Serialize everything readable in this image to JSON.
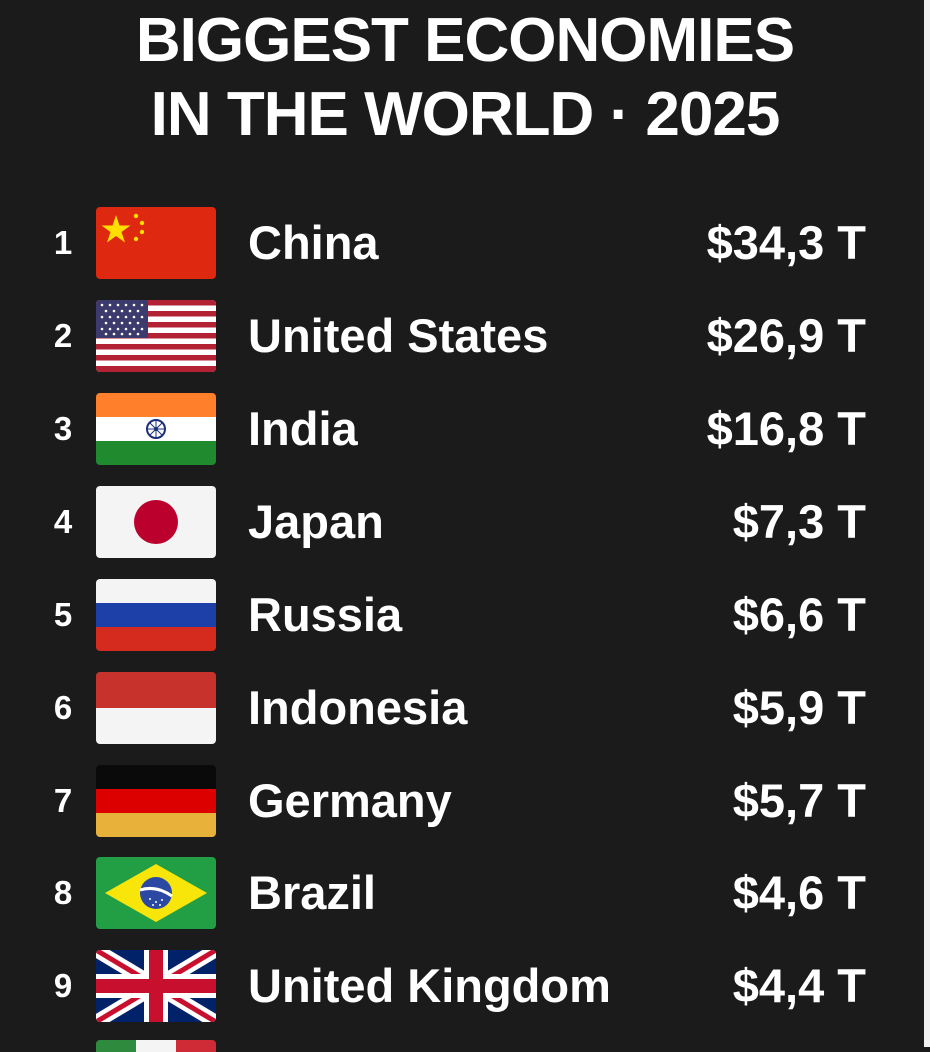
{
  "title": {
    "line1": "BIGGEST ECONOMIES",
    "line2": "IN THE WORLD · 2025"
  },
  "rows": [
    {
      "rank": "1",
      "country": "China",
      "value": "$34,3 T",
      "flag": "china-flag-icon"
    },
    {
      "rank": "2",
      "country": "United States",
      "value": "$26,9 T",
      "flag": "usa-flag-icon"
    },
    {
      "rank": "3",
      "country": "India",
      "value": "$16,8 T",
      "flag": "india-flag-icon"
    },
    {
      "rank": "4",
      "country": "Japan",
      "value": "$7,3 T",
      "flag": "japan-flag-icon"
    },
    {
      "rank": "5",
      "country": "Russia",
      "value": "$6,6 T",
      "flag": "russia-flag-icon"
    },
    {
      "rank": "6",
      "country": "Indonesia",
      "value": "$5,9 T",
      "flag": "indonesia-flag-icon"
    },
    {
      "rank": "7",
      "country": "Germany",
      "value": "$5,7 T",
      "flag": "germany-flag-icon"
    },
    {
      "rank": "8",
      "country": "Brazil",
      "value": "$4,6 T",
      "flag": "brazil-flag-icon"
    },
    {
      "rank": "9",
      "country": "United Kingdom",
      "value": "$4,4 T",
      "flag": "uk-flag-icon"
    }
  ],
  "colors": {
    "background": "#1b1b1b",
    "text": "#ffffff"
  }
}
